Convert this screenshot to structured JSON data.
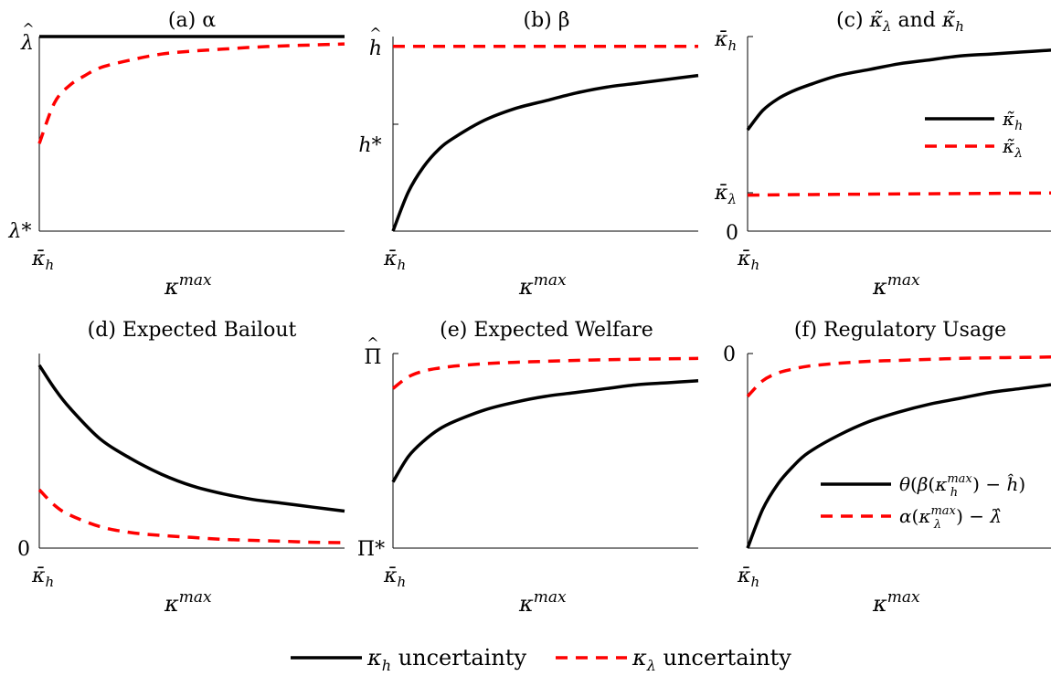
{
  "colors": {
    "black_series": "#000000",
    "red_series": "#ff0000",
    "axis": "#000000"
  },
  "legend_bottom": {
    "items": [
      {
        "label": "κ_h uncertainty",
        "var": "κ",
        "sub": "h",
        "suffix": " uncertainty",
        "style": "solid",
        "color": "#000000"
      },
      {
        "label": "κ_λ uncertainty",
        "var": "κ",
        "sub": "λ",
        "suffix": " uncertainty",
        "style": "dashed",
        "color": "#ff0000"
      }
    ]
  },
  "chart_data": [
    {
      "id": "a",
      "type": "line",
      "title": "(a) α",
      "xlabel": "κ^max",
      "x_tick_label": "κ̄_h",
      "y_ticks": [
        {
          "label": "λ̂",
          "y": 1
        },
        {
          "label": "λ*",
          "y": 0
        }
      ],
      "ylim": [
        0,
        1
      ],
      "xlim": [
        0,
        1
      ],
      "grid": false,
      "legend": "none",
      "series": [
        {
          "style": "solid",
          "color": "#000000",
          "x": [
            0,
            0.1,
            0.2,
            0.3,
            0.4,
            0.5,
            0.6,
            0.7,
            0.8,
            0.9,
            1.0
          ],
          "y": [
            1,
            1,
            1,
            1,
            1,
            1,
            1,
            1,
            1,
            1,
            1
          ]
        },
        {
          "style": "dashed",
          "color": "#ff0000",
          "x": [
            0,
            0.05,
            0.1,
            0.15,
            0.2,
            0.3,
            0.4,
            0.5,
            0.6,
            0.7,
            0.8,
            0.9,
            1.0
          ],
          "y": [
            0.45,
            0.66,
            0.75,
            0.8,
            0.84,
            0.88,
            0.91,
            0.925,
            0.935,
            0.945,
            0.952,
            0.957,
            0.962
          ]
        }
      ]
    },
    {
      "id": "b",
      "type": "line",
      "title": "(b) β",
      "xlabel": "κ^max",
      "x_tick_label": "κ̄_h",
      "y_ticks": [
        {
          "label": "ĥ",
          "y": 0.95
        },
        {
          "label": "h*",
          "y": 0.55
        }
      ],
      "ylim": [
        0,
        1
      ],
      "xlim": [
        0,
        1
      ],
      "grid": false,
      "legend": "none",
      "series": [
        {
          "style": "solid",
          "color": "#000000",
          "x": [
            0,
            0.05,
            0.1,
            0.15,
            0.2,
            0.3,
            0.4,
            0.5,
            0.6,
            0.7,
            0.8,
            0.9,
            1.0
          ],
          "y": [
            0,
            0.2,
            0.33,
            0.42,
            0.48,
            0.57,
            0.63,
            0.67,
            0.71,
            0.74,
            0.76,
            0.78,
            0.8
          ]
        },
        {
          "style": "dashed",
          "color": "#ff0000",
          "x": [
            0,
            0.1,
            0.2,
            0.3,
            0.4,
            0.5,
            0.6,
            0.7,
            0.8,
            0.9,
            1.0
          ],
          "y": [
            0.95,
            0.95,
            0.95,
            0.95,
            0.95,
            0.95,
            0.95,
            0.95,
            0.95,
            0.95,
            0.95
          ]
        }
      ]
    },
    {
      "id": "c",
      "type": "line",
      "title": "(c) κ̃_λ and κ̃_h",
      "xlabel": "κ^max",
      "x_tick_label": "κ̄_h",
      "y_ticks": [
        {
          "label": "κ̄_h",
          "y": 1
        },
        {
          "label": "κ̄_λ",
          "y": 0.2
        },
        {
          "label": "0",
          "y": 0
        }
      ],
      "ylim": [
        0,
        1
      ],
      "xlim": [
        0,
        1
      ],
      "grid": false,
      "legend": "right",
      "legend_items": [
        {
          "label": "κ̃_h",
          "style": "solid",
          "color": "#000000"
        },
        {
          "label": "κ̃_λ",
          "style": "dashed",
          "color": "#ff0000"
        }
      ],
      "series": [
        {
          "style": "solid",
          "color": "#000000",
          "x": [
            0,
            0.05,
            0.1,
            0.15,
            0.2,
            0.3,
            0.4,
            0.5,
            0.6,
            0.7,
            0.8,
            0.9,
            1.0
          ],
          "y": [
            0.52,
            0.62,
            0.68,
            0.72,
            0.75,
            0.8,
            0.83,
            0.86,
            0.88,
            0.9,
            0.91,
            0.92,
            0.93
          ]
        },
        {
          "style": "dashed",
          "color": "#ff0000",
          "x": [
            0,
            0.2,
            0.4,
            0.6,
            0.8,
            1.0
          ],
          "y": [
            0.185,
            0.188,
            0.19,
            0.192,
            0.194,
            0.196
          ]
        }
      ]
    },
    {
      "id": "d",
      "type": "line",
      "title": "(d) Expected Bailout",
      "xlabel": "κ^max",
      "x_tick_label": "κ̄_h",
      "y_ticks": [
        {
          "label": "0",
          "y": 0
        }
      ],
      "ylim": [
        0,
        1
      ],
      "xlim": [
        0,
        1
      ],
      "grid": false,
      "legend": "none",
      "series": [
        {
          "style": "solid",
          "color": "#000000",
          "x": [
            0,
            0.05,
            0.1,
            0.2,
            0.3,
            0.4,
            0.5,
            0.6,
            0.7,
            0.8,
            0.9,
            1.0
          ],
          "y": [
            0.94,
            0.82,
            0.72,
            0.56,
            0.46,
            0.38,
            0.32,
            0.28,
            0.25,
            0.23,
            0.21,
            0.19
          ]
        },
        {
          "style": "dashed",
          "color": "#ff0000",
          "x": [
            0,
            0.05,
            0.1,
            0.2,
            0.3,
            0.4,
            0.5,
            0.6,
            0.7,
            0.8,
            0.9,
            1.0
          ],
          "y": [
            0.3,
            0.22,
            0.17,
            0.11,
            0.08,
            0.065,
            0.055,
            0.045,
            0.04,
            0.035,
            0.03,
            0.028
          ]
        }
      ]
    },
    {
      "id": "e",
      "type": "line",
      "title": "(e) Expected Welfare",
      "xlabel": "κ^max",
      "x_tick_label": "κ̄_h",
      "y_ticks": [
        {
          "label": "Π̂",
          "y": 1
        },
        {
          "label": "Π*",
          "y": 0
        }
      ],
      "ylim": [
        0,
        1
      ],
      "xlim": [
        0,
        1
      ],
      "grid": false,
      "legend": "none",
      "series": [
        {
          "style": "solid",
          "color": "#000000",
          "x": [
            0,
            0.05,
            0.1,
            0.15,
            0.2,
            0.3,
            0.4,
            0.5,
            0.6,
            0.7,
            0.8,
            0.9,
            1.0
          ],
          "y": [
            0.34,
            0.47,
            0.55,
            0.61,
            0.65,
            0.71,
            0.75,
            0.78,
            0.8,
            0.82,
            0.84,
            0.85,
            0.86
          ]
        },
        {
          "style": "dashed",
          "color": "#ff0000",
          "x": [
            0,
            0.05,
            0.1,
            0.15,
            0.2,
            0.3,
            0.4,
            0.5,
            0.6,
            0.7,
            0.8,
            0.9,
            1.0
          ],
          "y": [
            0.82,
            0.88,
            0.91,
            0.925,
            0.935,
            0.948,
            0.955,
            0.96,
            0.965,
            0.968,
            0.971,
            0.973,
            0.975
          ]
        }
      ]
    },
    {
      "id": "f",
      "type": "line",
      "title": "(f) Regulatory Usage",
      "xlabel": "κ^max",
      "x_tick_label": "κ̄_h",
      "y_ticks": [
        {
          "label": "0",
          "y": 0
        }
      ],
      "ylim": [
        -1,
        0
      ],
      "xlim": [
        0,
        1
      ],
      "grid": false,
      "legend": "bottom-right",
      "legend_items": [
        {
          "label": "θ(β(κ_h^max) − ĥ)",
          "style": "solid",
          "color": "#000000"
        },
        {
          "label": "α(κ_λ^max) − λ̂",
          "style": "dashed",
          "color": "#ff0000"
        }
      ],
      "series": [
        {
          "style": "solid",
          "color": "#000000",
          "x": [
            0,
            0.05,
            0.1,
            0.15,
            0.2,
            0.3,
            0.4,
            0.5,
            0.6,
            0.7,
            0.8,
            0.9,
            1.0
          ],
          "y": [
            -1.0,
            -0.8,
            -0.67,
            -0.58,
            -0.51,
            -0.42,
            -0.35,
            -0.3,
            -0.26,
            -0.23,
            -0.2,
            -0.18,
            -0.16
          ]
        },
        {
          "style": "dashed",
          "color": "#ff0000",
          "x": [
            0,
            0.05,
            0.1,
            0.15,
            0.2,
            0.3,
            0.4,
            0.5,
            0.6,
            0.7,
            0.8,
            0.9,
            1.0
          ],
          "y": [
            -0.22,
            -0.14,
            -0.1,
            -0.08,
            -0.065,
            -0.05,
            -0.04,
            -0.035,
            -0.03,
            -0.025,
            -0.022,
            -0.02,
            -0.018
          ]
        }
      ]
    }
  ]
}
